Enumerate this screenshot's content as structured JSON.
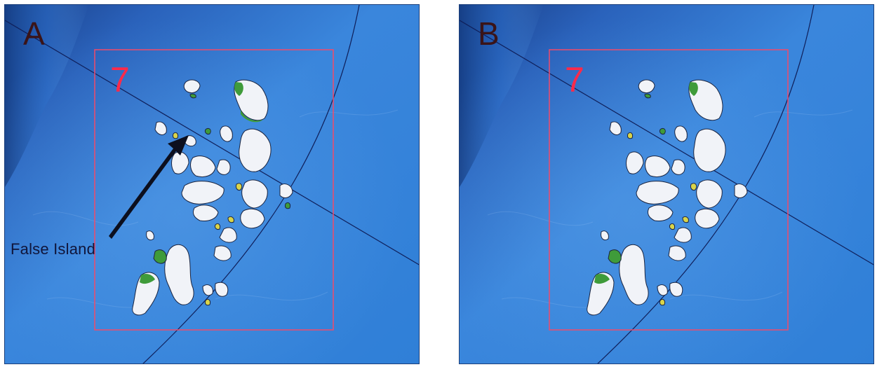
{
  "figure": {
    "panels": [
      {
        "label": "A",
        "tile_number": "7",
        "annotation": "False Island"
      },
      {
        "label": "B",
        "tile_number": "7"
      }
    ]
  },
  "colors": {
    "ocean_deep": "#1f4f9e",
    "ocean_shallow": "#3f8ae0",
    "ice": "#f1f3f8",
    "land": "#3f9b3a",
    "island_small": "#d9d44a",
    "tile_border": "#f24a6a",
    "grid_line": "#0f1f5a"
  }
}
